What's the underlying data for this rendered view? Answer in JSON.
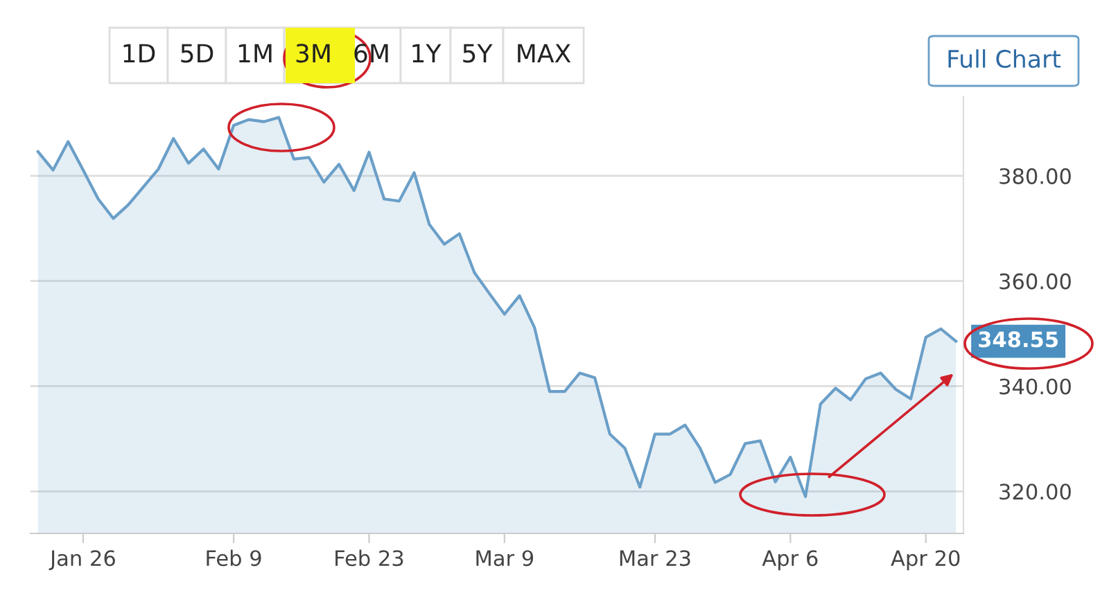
{
  "chart_data": {
    "type": "area",
    "categories": [
      null,
      null,
      null,
      "Jan 26",
      null,
      null,
      null,
      null,
      null,
      null,
      null,
      null,
      null,
      "Feb 9",
      null,
      null,
      null,
      null,
      null,
      null,
      null,
      null,
      "Feb 23",
      null,
      null,
      null,
      null,
      null,
      null,
      null,
      null,
      "Mar 9",
      null,
      null,
      null,
      null,
      null,
      null,
      null,
      null,
      null,
      "Mar 23",
      null,
      null,
      null,
      null,
      null,
      null,
      null,
      null,
      "Apr 6",
      null,
      null,
      null,
      null,
      null,
      null,
      null,
      null,
      "Apr 20",
      null,
      null
    ],
    "series": [
      {
        "color": "#6a9fc8",
        "values": [
          384.6,
          381.1,
          386.5,
          381.1,
          375.6,
          371.9,
          374.5,
          377.9,
          381.3,
          387.1,
          382.4,
          385.1,
          381.3,
          389.6,
          390.7,
          390.3,
          391.1,
          383.2,
          383.5,
          378.8,
          382.2,
          377.2,
          384.5,
          375.6,
          375.2,
          380.6,
          370.8,
          367.0,
          369.0,
          361.6,
          357.6,
          353.7,
          357.2,
          351.1,
          339.0,
          339.0,
          342.5,
          341.6,
          330.9,
          328.2,
          320.8,
          330.9,
          330.9,
          332.6,
          328.2,
          321.7,
          323.2,
          329.1,
          329.6,
          321.8,
          326.5,
          319.0,
          336.6,
          339.6,
          337.4,
          341.4,
          342.5,
          339.4,
          337.6,
          349.3,
          350.9,
          348.55
        ],
        "value_labels": [
          null,
          null,
          null,
          null,
          null,
          null,
          null,
          null,
          null,
          null,
          null,
          null,
          null,
          null,
          null,
          null,
          null,
          null,
          null,
          null,
          null,
          null,
          null,
          null,
          null,
          null,
          null,
          null,
          null,
          null,
          null,
          null,
          null,
          null,
          null,
          null,
          null,
          null,
          null,
          null,
          null,
          null,
          null,
          null,
          null,
          null,
          null,
          null,
          null,
          null,
          null,
          null,
          null,
          null,
          null,
          null,
          null,
          null,
          null,
          null,
          null,
          "348.55"
        ]
      }
    ],
    "ylim": [
      312,
      395
    ],
    "yticks": [
      {
        "value": 320,
        "label": "320.00"
      },
      {
        "value": 340,
        "label": "340.00"
      },
      {
        "value": 360,
        "label": "360.00"
      },
      {
        "value": 380,
        "label": "380.00"
      }
    ],
    "grid": "y",
    "annotations": [
      "1D",
      "5D",
      "1M",
      "3M",
      "6M",
      "1Y",
      "5Y",
      "MAX",
      "Full Chart"
    ]
  }
}
